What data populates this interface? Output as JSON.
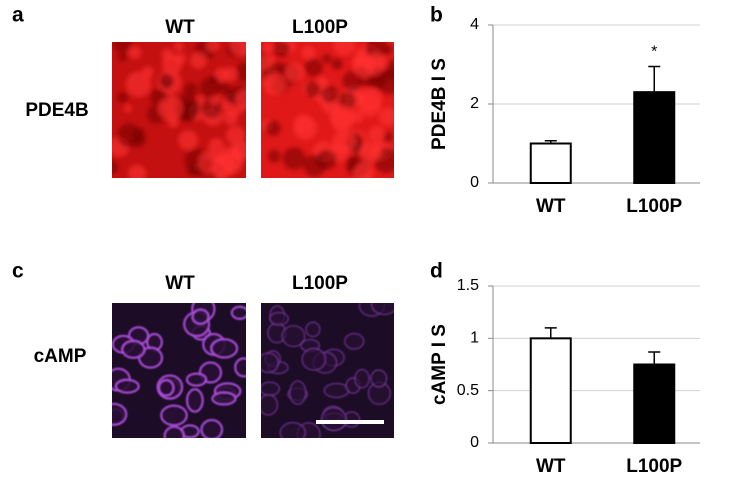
{
  "panels": {
    "a": {
      "label": "a",
      "columns": [
        "WT",
        "L100P"
      ],
      "row_label": "PDE4B"
    },
    "c": {
      "label": "c",
      "columns": [
        "WT",
        "L100P"
      ],
      "row_label": "cAMP"
    }
  },
  "chart_data": [
    {
      "type": "bar",
      "panel_label": "b",
      "ylabel": "PDE4B I S",
      "categories": [
        "WT",
        "L100P"
      ],
      "values": [
        1.0,
        2.3
      ],
      "errors": [
        0.07,
        0.65
      ],
      "colors": [
        "#ffffff",
        "#000000"
      ],
      "ylim": [
        0,
        4
      ],
      "yticks": [
        0,
        2,
        4
      ],
      "grid": true,
      "annotation": "*"
    },
    {
      "type": "bar",
      "panel_label": "d",
      "ylabel": "cAMP I S",
      "categories": [
        "WT",
        "L100P"
      ],
      "values": [
        1.0,
        0.75
      ],
      "errors": [
        0.1,
        0.12
      ],
      "colors": [
        "#ffffff",
        "#000000"
      ],
      "ylim": [
        0,
        1.5
      ],
      "yticks": [
        0,
        0.5,
        1,
        1.5
      ],
      "grid": true
    }
  ]
}
